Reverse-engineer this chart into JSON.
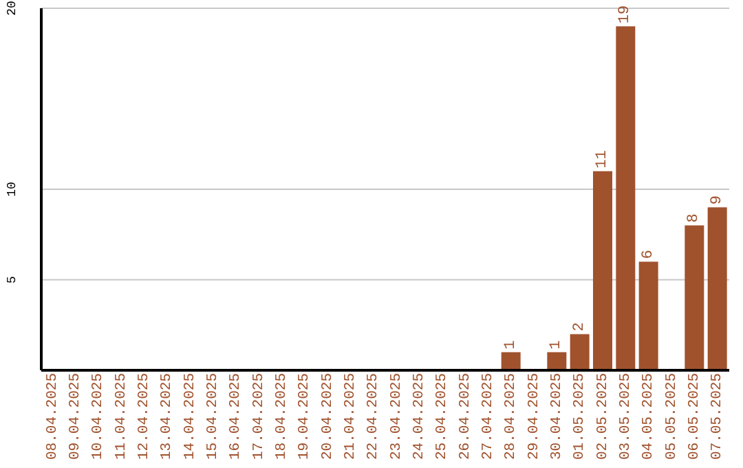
{
  "chart_data": {
    "type": "bar",
    "categories": [
      "08.04.2025",
      "09.04.2025",
      "10.04.2025",
      "11.04.2025",
      "12.04.2025",
      "13.04.2025",
      "14.04.2025",
      "15.04.2025",
      "16.04.2025",
      "17.04.2025",
      "18.04.2025",
      "19.04.2025",
      "20.04.2025",
      "21.04.2025",
      "22.04.2025",
      "23.04.2025",
      "24.04.2025",
      "25.04.2025",
      "26.04.2025",
      "27.04.2025",
      "28.04.2025",
      "29.04.2025",
      "30.04.2025",
      "01.05.2025",
      "02.05.2025",
      "03.05.2025",
      "04.05.2025",
      "05.05.2025",
      "06.05.2025",
      "07.05.2025"
    ],
    "values": [
      0,
      0,
      0,
      0,
      0,
      0,
      0,
      0,
      0,
      0,
      0,
      0,
      0,
      0,
      0,
      0,
      0,
      0,
      0,
      0,
      1,
      0,
      1,
      2,
      11,
      19,
      6,
      0,
      8,
      9
    ],
    "value_labels": [
      null,
      null,
      null,
      null,
      null,
      null,
      null,
      null,
      null,
      null,
      null,
      null,
      null,
      null,
      null,
      null,
      null,
      null,
      null,
      null,
      "1",
      null,
      "1",
      "2",
      "11",
      "19",
      "6",
      null,
      "8",
      "9"
    ],
    "color": "#a0522d",
    "ylim": [
      0,
      20
    ],
    "yticks": [
      5,
      10,
      20
    ],
    "grid": "y"
  }
}
